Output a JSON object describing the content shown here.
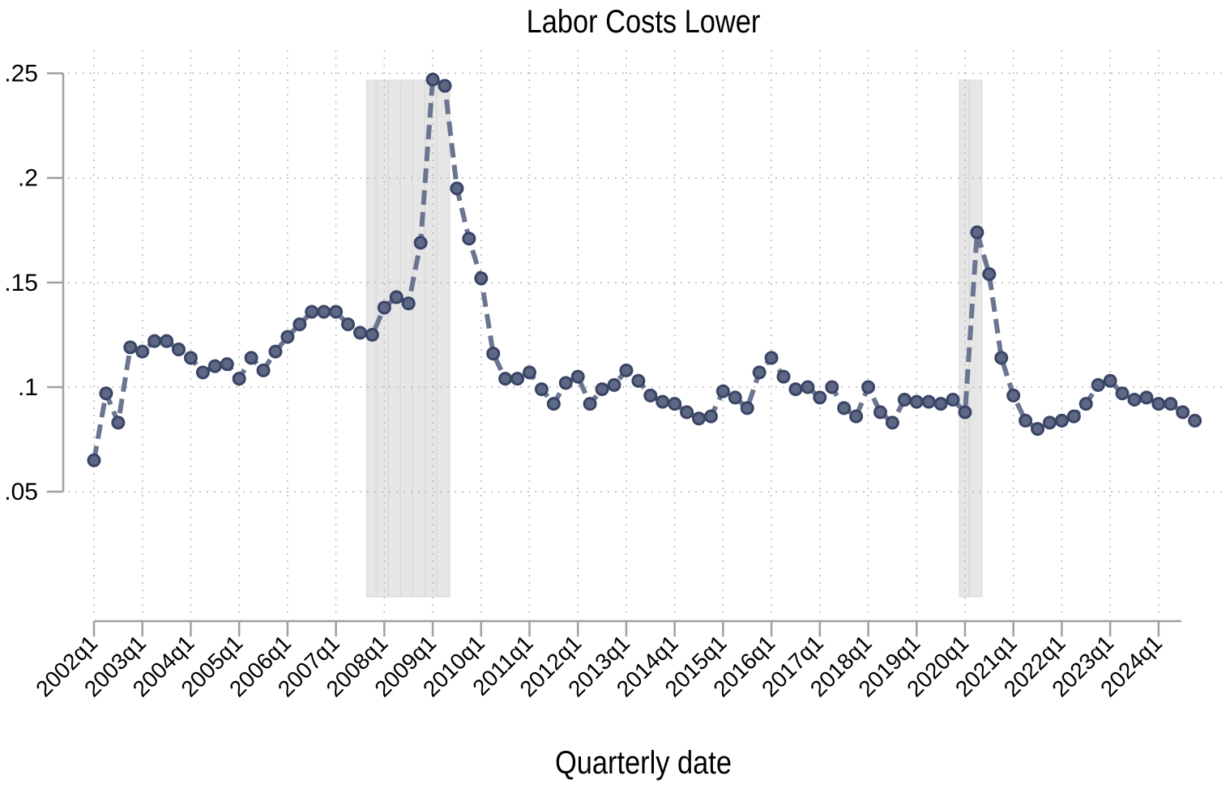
{
  "chart_data": {
    "type": "line",
    "title": "Labor Costs Lower",
    "xlabel": "Quarterly date",
    "ylabel": "",
    "ylim": [
      0.0,
      0.25
    ],
    "yticks": [
      0.05,
      0.1,
      0.15,
      0.2,
      0.25
    ],
    "ytick_labels": [
      ".05",
      ".1",
      ".15",
      ".2",
      ".25"
    ],
    "xtick_labels": [
      "2002q1",
      "2003q1",
      "2004q1",
      "2005q1",
      "2006q1",
      "2007q1",
      "2008q1",
      "2009q1",
      "2010q1",
      "2011q1",
      "2012q1",
      "2013q1",
      "2014q1",
      "2015q1",
      "2016q1",
      "2017q1",
      "2018q1",
      "2019q1",
      "2020q1",
      "2021q1",
      "2022q1",
      "2023q1",
      "2024q1"
    ],
    "grid": true,
    "legend": null,
    "line_style": "dashed",
    "marker": "circle",
    "colors": {
      "line": "#6b7590",
      "marker": "#3a4466",
      "recession": "#e6e6e6",
      "grid": "#b8b8b8",
      "axis": "#a0a0a0"
    },
    "recession_shading": [
      {
        "start": "2007q4",
        "end": "2009q2"
      },
      {
        "start": "2020q1",
        "end": "2020q2"
      }
    ],
    "x": [
      "2002q1",
      "2002q2",
      "2002q3",
      "2002q4",
      "2003q1",
      "2003q2",
      "2003q3",
      "2003q4",
      "2004q1",
      "2004q2",
      "2004q3",
      "2004q4",
      "2005q1",
      "2005q2",
      "2005q3",
      "2005q4",
      "2006q1",
      "2006q2",
      "2006q3",
      "2006q4",
      "2007q1",
      "2007q2",
      "2007q3",
      "2007q4",
      "2008q1",
      "2008q2",
      "2008q3",
      "2008q4",
      "2009q1",
      "2009q2",
      "2009q3",
      "2009q4",
      "2010q1",
      "2010q2",
      "2010q3",
      "2010q4",
      "2011q1",
      "2011q2",
      "2011q3",
      "2011q4",
      "2012q1",
      "2012q2",
      "2012q3",
      "2012q4",
      "2013q1",
      "2013q2",
      "2013q3",
      "2013q4",
      "2014q1",
      "2014q2",
      "2014q3",
      "2014q4",
      "2015q1",
      "2015q2",
      "2015q3",
      "2015q4",
      "2016q1",
      "2016q2",
      "2016q3",
      "2016q4",
      "2017q1",
      "2017q2",
      "2017q3",
      "2017q4",
      "2018q1",
      "2018q2",
      "2018q3",
      "2018q4",
      "2019q1",
      "2019q2",
      "2019q3",
      "2019q4",
      "2020q1",
      "2020q2",
      "2020q3",
      "2020q4",
      "2021q1",
      "2021q2",
      "2021q3",
      "2021q4",
      "2022q1",
      "2022q2",
      "2022q3",
      "2022q4",
      "2023q1",
      "2023q2",
      "2023q3",
      "2023q4",
      "2024q1",
      "2024q2",
      "2024q3",
      "2024q4"
    ],
    "values": [
      0.065,
      0.097,
      0.083,
      0.119,
      0.117,
      0.122,
      0.122,
      0.118,
      0.114,
      0.107,
      0.11,
      0.111,
      0.104,
      0.114,
      0.108,
      0.117,
      0.124,
      0.13,
      0.136,
      0.136,
      0.136,
      0.13,
      0.126,
      0.125,
      0.138,
      0.143,
      0.14,
      0.169,
      0.247,
      0.244,
      0.195,
      0.171,
      0.152,
      0.116,
      0.104,
      0.104,
      0.107,
      0.099,
      0.092,
      0.102,
      0.105,
      0.092,
      0.099,
      0.101,
      0.108,
      0.103,
      0.096,
      0.093,
      0.092,
      0.088,
      0.085,
      0.086,
      0.098,
      0.095,
      0.09,
      0.107,
      0.114,
      0.105,
      0.099,
      0.1,
      0.095,
      0.1,
      0.09,
      0.086,
      0.1,
      0.088,
      0.083,
      0.094,
      0.093,
      0.093,
      0.092,
      0.094,
      0.088,
      0.174,
      0.154,
      0.114,
      0.096,
      0.084,
      0.08,
      0.083,
      0.084,
      0.086,
      0.092,
      0.101,
      0.103,
      0.097,
      0.094,
      0.095,
      0.092,
      0.092,
      0.088,
      0.084
    ]
  }
}
